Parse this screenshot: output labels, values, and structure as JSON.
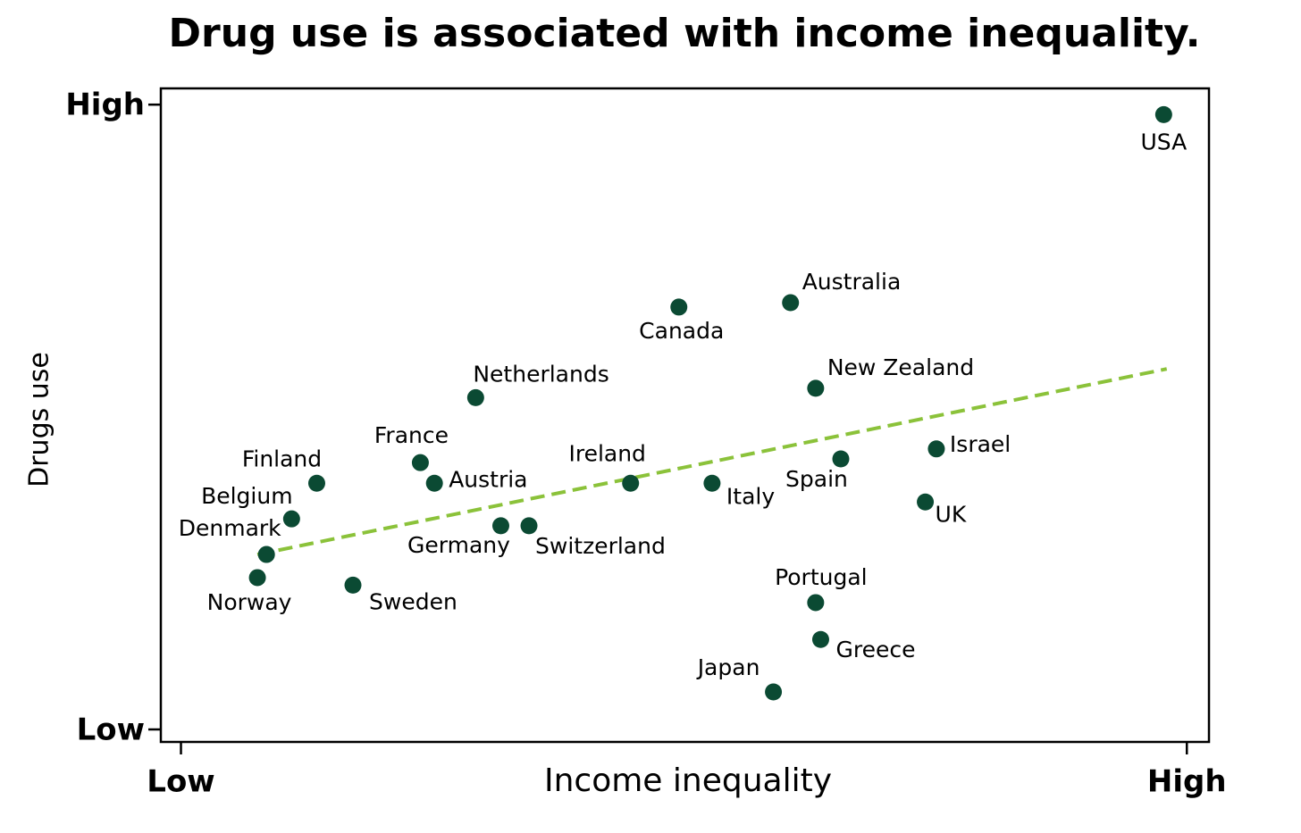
{
  "chart_data": {
    "type": "scatter",
    "title": "Drug use is associated with income inequality.",
    "x_label": "Income inequality",
    "y_label": "Drugs use",
    "xlim": [
      -0.2,
      10.22
    ],
    "ylim": [
      -0.2,
      10.26
    ],
    "xticks": [
      {
        "value": 0,
        "label": "Low"
      },
      {
        "value": 10,
        "label": "High"
      }
    ],
    "yticks": [
      {
        "value": 0,
        "label": "Low"
      },
      {
        "value": 10,
        "label": "High"
      }
    ],
    "color": "#0b4a33",
    "labels": [
      "USA",
      "Australia",
      "Canada",
      "New Zealand",
      "Netherlands",
      "Israel",
      "Spain",
      "France",
      "Finland",
      "Austria",
      "Ireland",
      "Italy",
      "UK",
      "Belgium",
      "Germany",
      "Switzerland",
      "Denmark",
      "Norway",
      "Sweden",
      "Portugal",
      "Greece",
      "Japan"
    ],
    "x": [
      9.77,
      6.06,
      4.95,
      6.31,
      2.93,
      7.51,
      6.56,
      2.38,
      1.35,
      2.52,
      4.47,
      5.28,
      7.4,
      1.1,
      3.18,
      3.46,
      0.85,
      0.76,
      1.71,
      6.31,
      6.36,
      5.89
    ],
    "y": [
      9.84,
      6.83,
      6.76,
      5.46,
      5.31,
      4.49,
      4.33,
      4.27,
      3.94,
      3.94,
      3.94,
      3.94,
      3.64,
      3.37,
      3.26,
      3.26,
      2.8,
      2.43,
      2.31,
      2.03,
      1.44,
      0.6
    ],
    "trendline": {
      "color": "#8bc23a",
      "x": [
        0.76,
        9.8
      ],
      "y": [
        2.8,
        5.77
      ]
    }
  }
}
